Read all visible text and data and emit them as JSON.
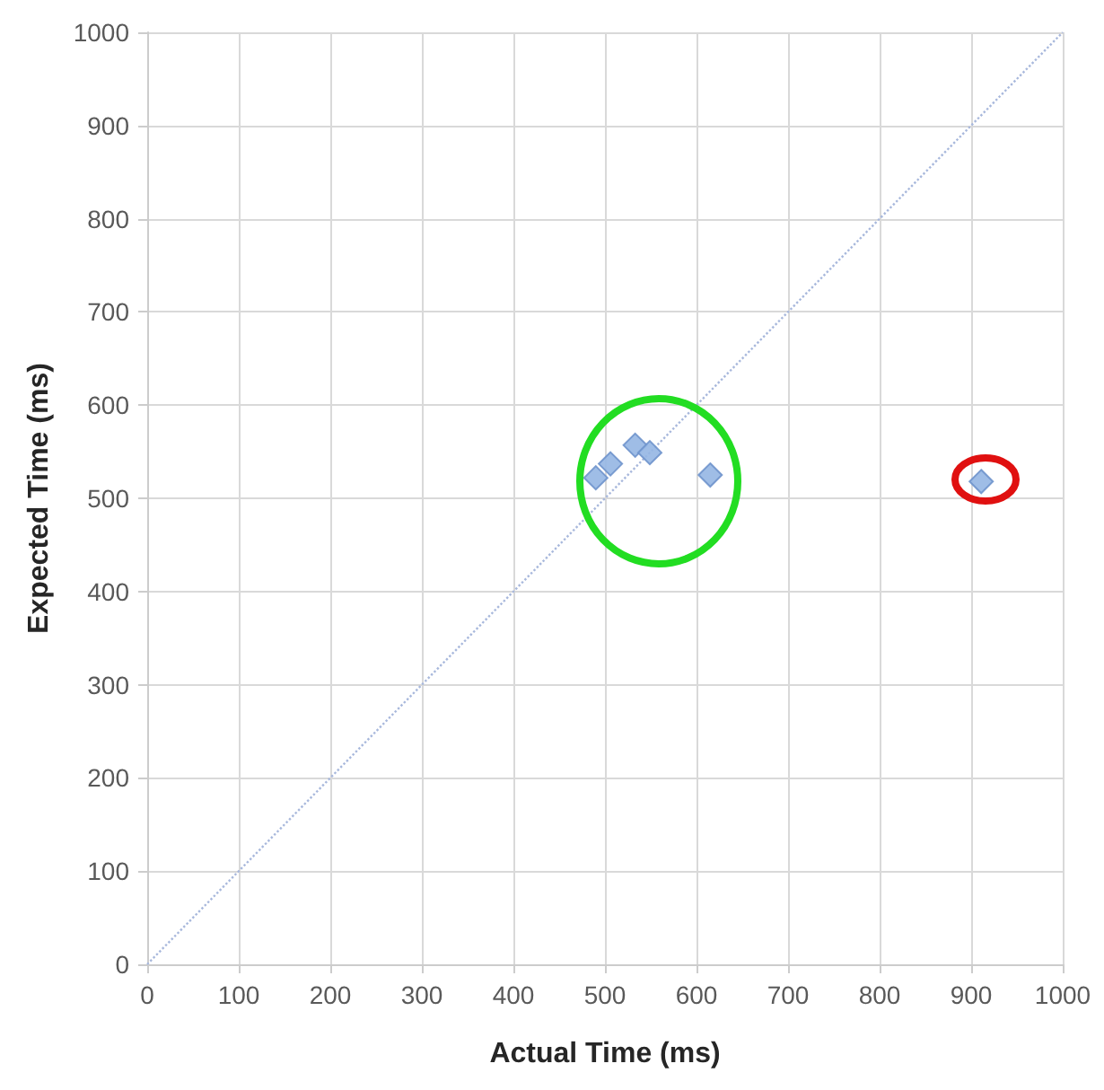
{
  "chart_data": {
    "type": "scatter",
    "xlabel": "Actual Time (ms)",
    "ylabel": "Expected Time (ms)",
    "series": [
      {
        "color": "#95b6e3",
        "marker": "diamond",
        "x": [
          490,
          506,
          533,
          549,
          615,
          911
        ],
        "values": [
          522,
          537,
          557,
          549,
          525,
          518
        ]
      },
      {
        "type": "line",
        "color": "#a8b8dc",
        "line_style": "dotted",
        "marker": "none",
        "x": [
          0,
          1000
        ],
        "values": [
          0,
          1000
        ]
      }
    ],
    "xlim": [
      0,
      1000
    ],
    "ylim": [
      0,
      1000
    ],
    "xticks": [
      0,
      100,
      200,
      300,
      400,
      500,
      600,
      700,
      800,
      900,
      1000
    ],
    "yticks": [
      0,
      100,
      200,
      300,
      400,
      500,
      600,
      700,
      800,
      900,
      1000
    ],
    "grid": true
  }
}
